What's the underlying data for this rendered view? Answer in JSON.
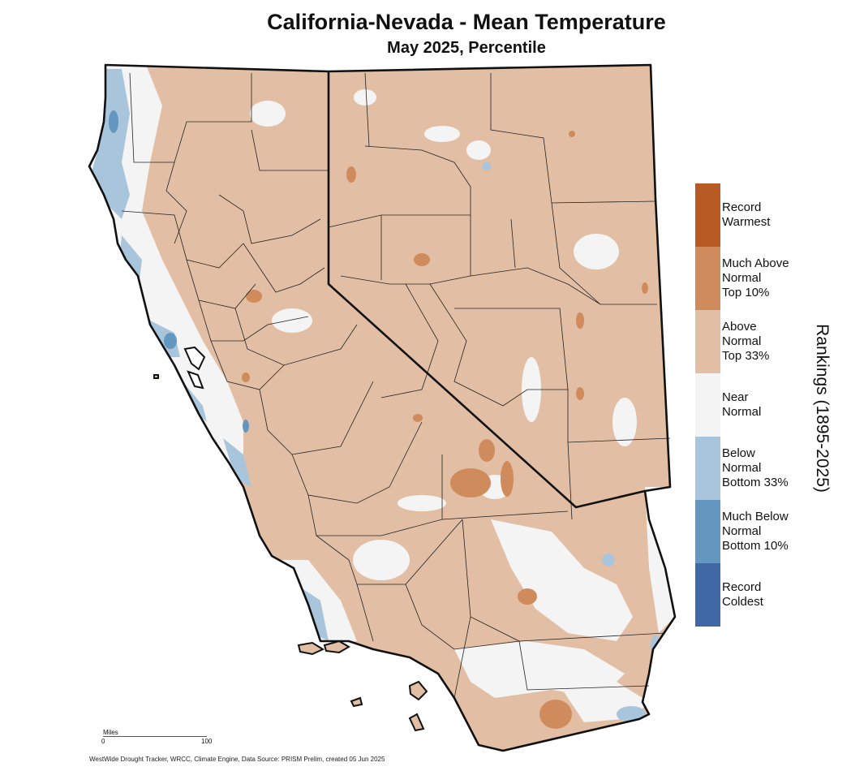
{
  "title": "California-Nevada - Mean Temperature",
  "subtitle": "May 2025, Percentile",
  "legend": {
    "title": "Rankings (1895-2025)",
    "items": [
      {
        "label": "Record\nWarmest",
        "color": "#b85a23"
      },
      {
        "label": "Much Above\nNormal\nTop 10%",
        "color": "#cf8b5c"
      },
      {
        "label": "Above\nNormal\nTop 33%",
        "color": "#e2bfa4"
      },
      {
        "label": "Near\nNormal",
        "color": "#f4f4f4"
      },
      {
        "label": "Below\nNormal\nBottom 33%",
        "color": "#a9c5dc"
      },
      {
        "label": "Much Below\nNormal\nBottom 10%",
        "color": "#6497bf"
      },
      {
        "label": "Record\nColdest",
        "color": "#3f68a4"
      }
    ]
  },
  "scale_bar": {
    "unit": "Miles",
    "start": "0",
    "end": "100"
  },
  "credit": "WestWide Drought Tracker, WRCC, Climate Engine, Data Source: PRISM Prelim, created 05 Jun 2025"
}
